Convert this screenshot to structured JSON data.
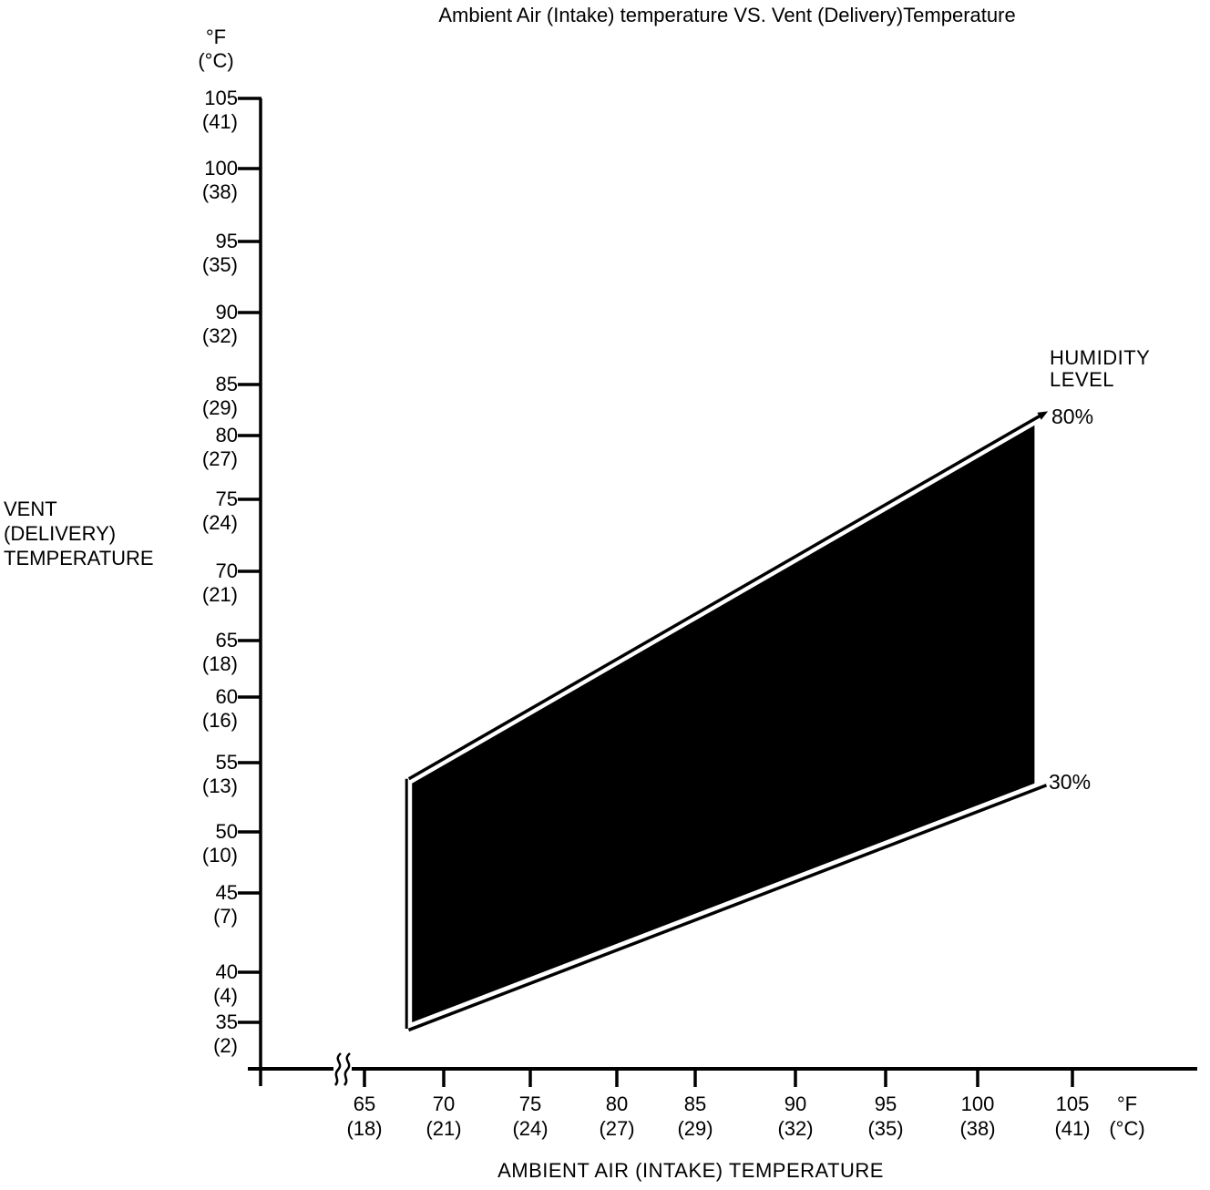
{
  "title": "Ambient Air (Intake) temperature VS. Vent (Delivery)Temperature",
  "colors": {
    "ink": "#000000",
    "background": "#ffffff",
    "band_fill": "#000000"
  },
  "y_axis": {
    "unit_line1": "°F",
    "unit_line2": "(°C)",
    "title_lines": [
      "VENT",
      "(DELIVERY)",
      "TEMPERATURE"
    ],
    "ticks": [
      {
        "f": "105",
        "c": "(41)",
        "pos": 108
      },
      {
        "f": "100",
        "c": "(38)",
        "pos": 185
      },
      {
        "f": "95",
        "c": "(35)",
        "pos": 265
      },
      {
        "f": "90",
        "c": "(32)",
        "pos": 343
      },
      {
        "f": "85",
        "c": "(29)",
        "pos": 422
      },
      {
        "f": "80",
        "c": "(27)",
        "pos": 478
      },
      {
        "f": "75",
        "c": "(24)",
        "pos": 548
      },
      {
        "f": "70",
        "c": "(21)",
        "pos": 627
      },
      {
        "f": "65",
        "c": "(18)",
        "pos": 703
      },
      {
        "f": "60",
        "c": "(16)",
        "pos": 765
      },
      {
        "f": "55",
        "c": "(13)",
        "pos": 837
      },
      {
        "f": "50",
        "c": "(10)",
        "pos": 913
      },
      {
        "f": "45",
        "c": "(7)",
        "pos": 980
      },
      {
        "f": "40",
        "c": "(4)",
        "pos": 1067
      },
      {
        "f": "35",
        "c": "(2)",
        "pos": 1122
      }
    ]
  },
  "x_axis": {
    "unit_line1": "°F",
    "unit_line2": "(°C)",
    "title": "AMBIENT AIR (INTAKE) TEMPERATURE",
    "has_break": true,
    "ticks": [
      {
        "f": "65",
        "c": "(18)",
        "pos": 400
      },
      {
        "f": "70",
        "c": "(21)",
        "pos": 487
      },
      {
        "f": "75",
        "c": "(24)",
        "pos": 582
      },
      {
        "f": "80",
        "c": "(27)",
        "pos": 677
      },
      {
        "f": "85",
        "c": "(29)",
        "pos": 763
      },
      {
        "f": "90",
        "c": "(32)",
        "pos": 873
      },
      {
        "f": "95",
        "c": "(35)",
        "pos": 972
      },
      {
        "f": "100",
        "c": "(38)",
        "pos": 1073
      },
      {
        "f": "105",
        "c": "(41)",
        "pos": 1177
      }
    ]
  },
  "legend": {
    "title_line1": "HUMIDITY",
    "title_line2": "LEVEL",
    "upper": "80%",
    "lower": "30%"
  },
  "chart_data": {
    "type": "area",
    "title": "Ambient Air (Intake) temperature VS. Vent (Delivery)Temperature",
    "xlabel": "AMBIENT AIR (INTAKE) TEMPERATURE",
    "ylabel": "VENT (DELIVERY) TEMPERATURE",
    "units": "°F (°C)",
    "xlim": [
      65,
      105
    ],
    "ylim": [
      35,
      105
    ],
    "x_ticks_f": [
      65,
      70,
      75,
      80,
      85,
      90,
      95,
      100,
      105
    ],
    "x_ticks_c": [
      18,
      21,
      24,
      27,
      29,
      32,
      35,
      38,
      41
    ],
    "y_ticks_f": [
      35,
      40,
      45,
      50,
      55,
      60,
      65,
      70,
      75,
      80,
      85,
      90,
      95,
      100,
      105
    ],
    "y_ticks_c": [
      2,
      4,
      7,
      10,
      13,
      16,
      18,
      21,
      24,
      27,
      29,
      32,
      35,
      38,
      41
    ],
    "grid": false,
    "x_axis_break": true,
    "legend_title": "HUMIDITY LEVEL",
    "legend_position": "right",
    "series": [
      {
        "name": "80%",
        "points_f": [
          [
            68,
            53.5
          ],
          [
            103,
            81
          ]
        ]
      },
      {
        "name": "30%",
        "points_f": [
          [
            68,
            35
          ],
          [
            103,
            53.5
          ]
        ]
      }
    ],
    "band": {
      "between": [
        "80%",
        "30%"
      ],
      "fill": "#000000"
    }
  }
}
